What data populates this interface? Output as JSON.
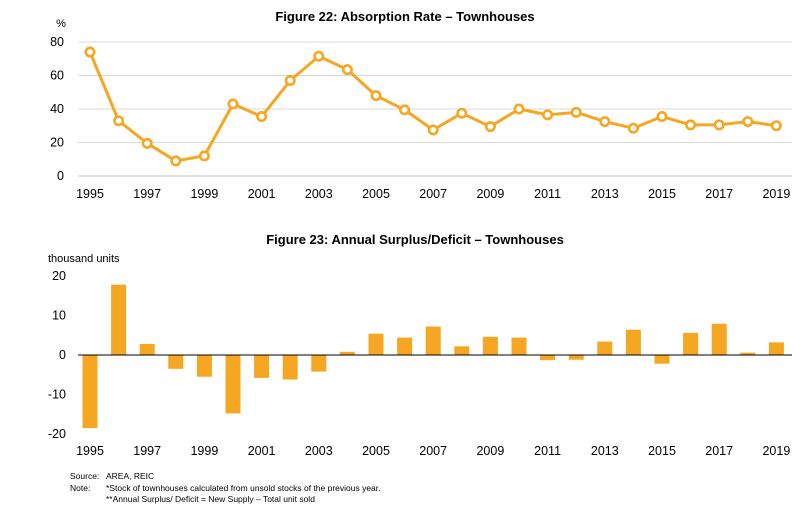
{
  "chart_data": [
    {
      "type": "line",
      "title": "Figure 22: Absorption Rate – Townhouses",
      "ylabel": "%",
      "ylim": [
        0,
        80
      ],
      "yticks": [
        "0",
        "20",
        "40",
        "60",
        "80"
      ],
      "xtick_labels": [
        "1995",
        "1997",
        "1999",
        "2001",
        "2003",
        "2005",
        "2007",
        "2009",
        "2011",
        "2013",
        "2015",
        "2017",
        "2019"
      ],
      "x": [
        1995,
        1996,
        1997,
        1998,
        1999,
        2000,
        2001,
        2002,
        2003,
        2004,
        2005,
        2006,
        2007,
        2008,
        2009,
        2010,
        2011,
        2012,
        2013,
        2014,
        2015,
        2016,
        2017,
        2018,
        2019
      ],
      "values": [
        74,
        33,
        19.5,
        9,
        12,
        43,
        35.5,
        57,
        71.5,
        63.5,
        48,
        39.5,
        27.5,
        37.5,
        29.5,
        40,
        36.5,
        38,
        32.5,
        28.5,
        35.5,
        30.5,
        30.5,
        32.5,
        30
      ],
      "grid": true,
      "color": "#F5A623"
    },
    {
      "type": "bar",
      "title": "Figure 23: Annual Surplus/Deficit – Townhouses",
      "ylabel": "thousand units",
      "ylim": [
        -20,
        20
      ],
      "yticks": [
        "-20",
        "-10",
        "0",
        "10",
        "20"
      ],
      "xtick_labels": [
        "1995",
        "1997",
        "1999",
        "2001",
        "2003",
        "2005",
        "2007",
        "2009",
        "2011",
        "2013",
        "2015",
        "2017",
        "2019"
      ],
      "x": [
        1995,
        1996,
        1997,
        1998,
        1999,
        2000,
        2001,
        2002,
        2003,
        2004,
        2005,
        2006,
        2007,
        2008,
        2009,
        2010,
        2011,
        2012,
        2013,
        2014,
        2015,
        2016,
        2017,
        2018,
        2019
      ],
      "values": [
        -18.5,
        17.8,
        2.8,
        -3.5,
        -5.5,
        -14.8,
        -5.8,
        -6.2,
        -4.2,
        0.8,
        5.4,
        4.4,
        7.2,
        2.2,
        4.6,
        4.4,
        -1.3,
        -1.2,
        3.4,
        6.4,
        -2.2,
        5.6,
        7.9,
        0.6,
        3.2
      ],
      "grid": false,
      "color": "#F5A623"
    }
  ],
  "notes": {
    "source_label": "Source:",
    "source_text": "AREA, REIC",
    "note_label": "Note:",
    "note_1": "*Stock of townhouses calculated from unsold stocks of the previous year.",
    "note_2": "**Annual Surplus/ Deficit = New Supply – Total unit sold"
  }
}
